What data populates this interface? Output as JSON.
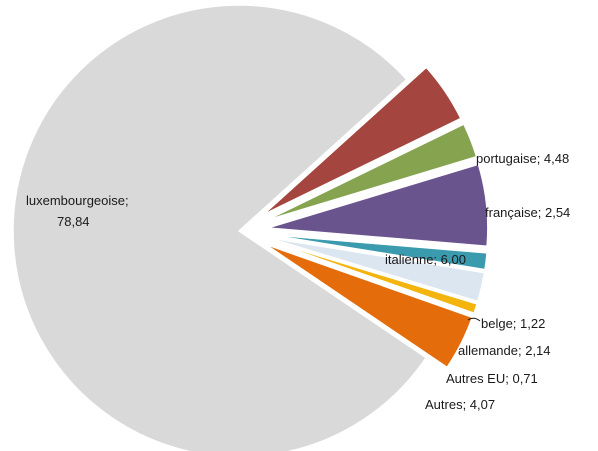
{
  "chart_data": {
    "type": "pie",
    "series": [
      {
        "name": "luxembourgeoise",
        "value": 78.84,
        "value_label": "78,84",
        "color": "#d9d9d9"
      },
      {
        "name": "portugaise",
        "value": 4.48,
        "value_label": "4,48",
        "color": "#a5453f"
      },
      {
        "name": "française",
        "value": 2.54,
        "value_label": "2,54",
        "color": "#86a350"
      },
      {
        "name": "italienne",
        "value": 6.0,
        "value_label": "6,00",
        "color": "#6a548e"
      },
      {
        "name": "belge",
        "value": 1.22,
        "value_label": "1,22",
        "color": "#3a9aae"
      },
      {
        "name": "allemande",
        "value": 2.14,
        "value_label": "2,14",
        "color": "#dce6f1"
      },
      {
        "name": "Autres EU",
        "value": 0.71,
        "value_label": "0,71",
        "color": "#f2b40d"
      },
      {
        "name": "Autres",
        "value": 4.07,
        "value_label": "4,07",
        "color": "#e46c0a"
      }
    ],
    "labels": {
      "luxembourgeoise_line1": "luxembourgeoise;",
      "luxembourgeoise_line2": "78,84",
      "portugaise": "portugaise; 4,48",
      "francaise": "française; 2,54",
      "italienne": "italienne; 6,00",
      "belge": "belge; 1,22",
      "allemande": "allemande; 2,14",
      "autres_eu": "Autres EU; 0,71",
      "autres": "Autres; 4,07"
    },
    "exploded": true,
    "legend": "none"
  }
}
